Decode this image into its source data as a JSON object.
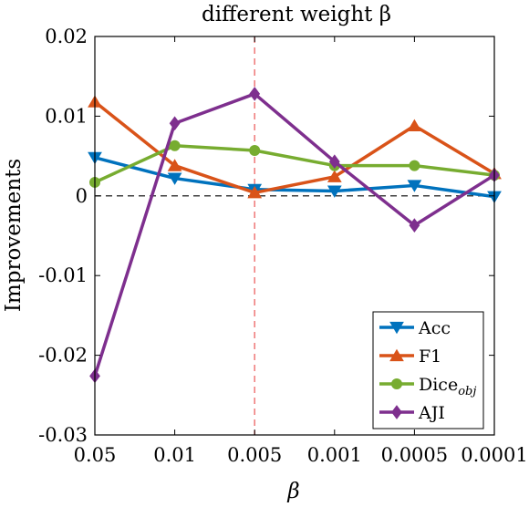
{
  "chart_data": {
    "type": "line",
    "title": "different weight β",
    "xlabel": "β",
    "ylabel": "Improvements",
    "categories": [
      "0.05",
      "0.01",
      "0.005",
      "0.001",
      "0.0005",
      "0.0001"
    ],
    "ylim": [
      -0.03,
      0.02
    ],
    "yticks": [
      -0.03,
      -0.02,
      -0.01,
      0,
      0.01,
      0.02
    ],
    "ytick_labels": [
      "-0.03",
      "-0.02",
      "-0.01",
      "0",
      "0.01",
      "0.02"
    ],
    "grid": false,
    "legend_position": "bottom-right",
    "reference_lines": [
      {
        "type": "horizontal",
        "value": 0,
        "style": "dashed",
        "color": "#000000"
      },
      {
        "type": "vertical",
        "category": "0.005",
        "style": "dashed",
        "color": "#f08080"
      }
    ],
    "series": [
      {
        "name": "Acc",
        "marker": "triangle-down",
        "color": "#0072BD",
        "values": [
          0.0048,
          0.0022,
          0.0008,
          0.0006,
          0.0013,
          -0.0001
        ]
      },
      {
        "name": "F1",
        "marker": "triangle-up",
        "color": "#D95319",
        "values": [
          0.0118,
          0.0038,
          0.0004,
          0.0024,
          0.0088,
          0.0028
        ]
      },
      {
        "name": "Dice",
        "name_subscript": "obj",
        "marker": "circle",
        "color": "#77AC30",
        "values": [
          0.0017,
          0.0063,
          0.0057,
          0.0038,
          0.0038,
          0.0026
        ]
      },
      {
        "name": "AJI",
        "marker": "diamond",
        "color": "#7E2F8E",
        "values": [
          -0.0226,
          0.0091,
          0.0128,
          0.0043,
          -0.0037,
          0.0026
        ]
      }
    ]
  }
}
